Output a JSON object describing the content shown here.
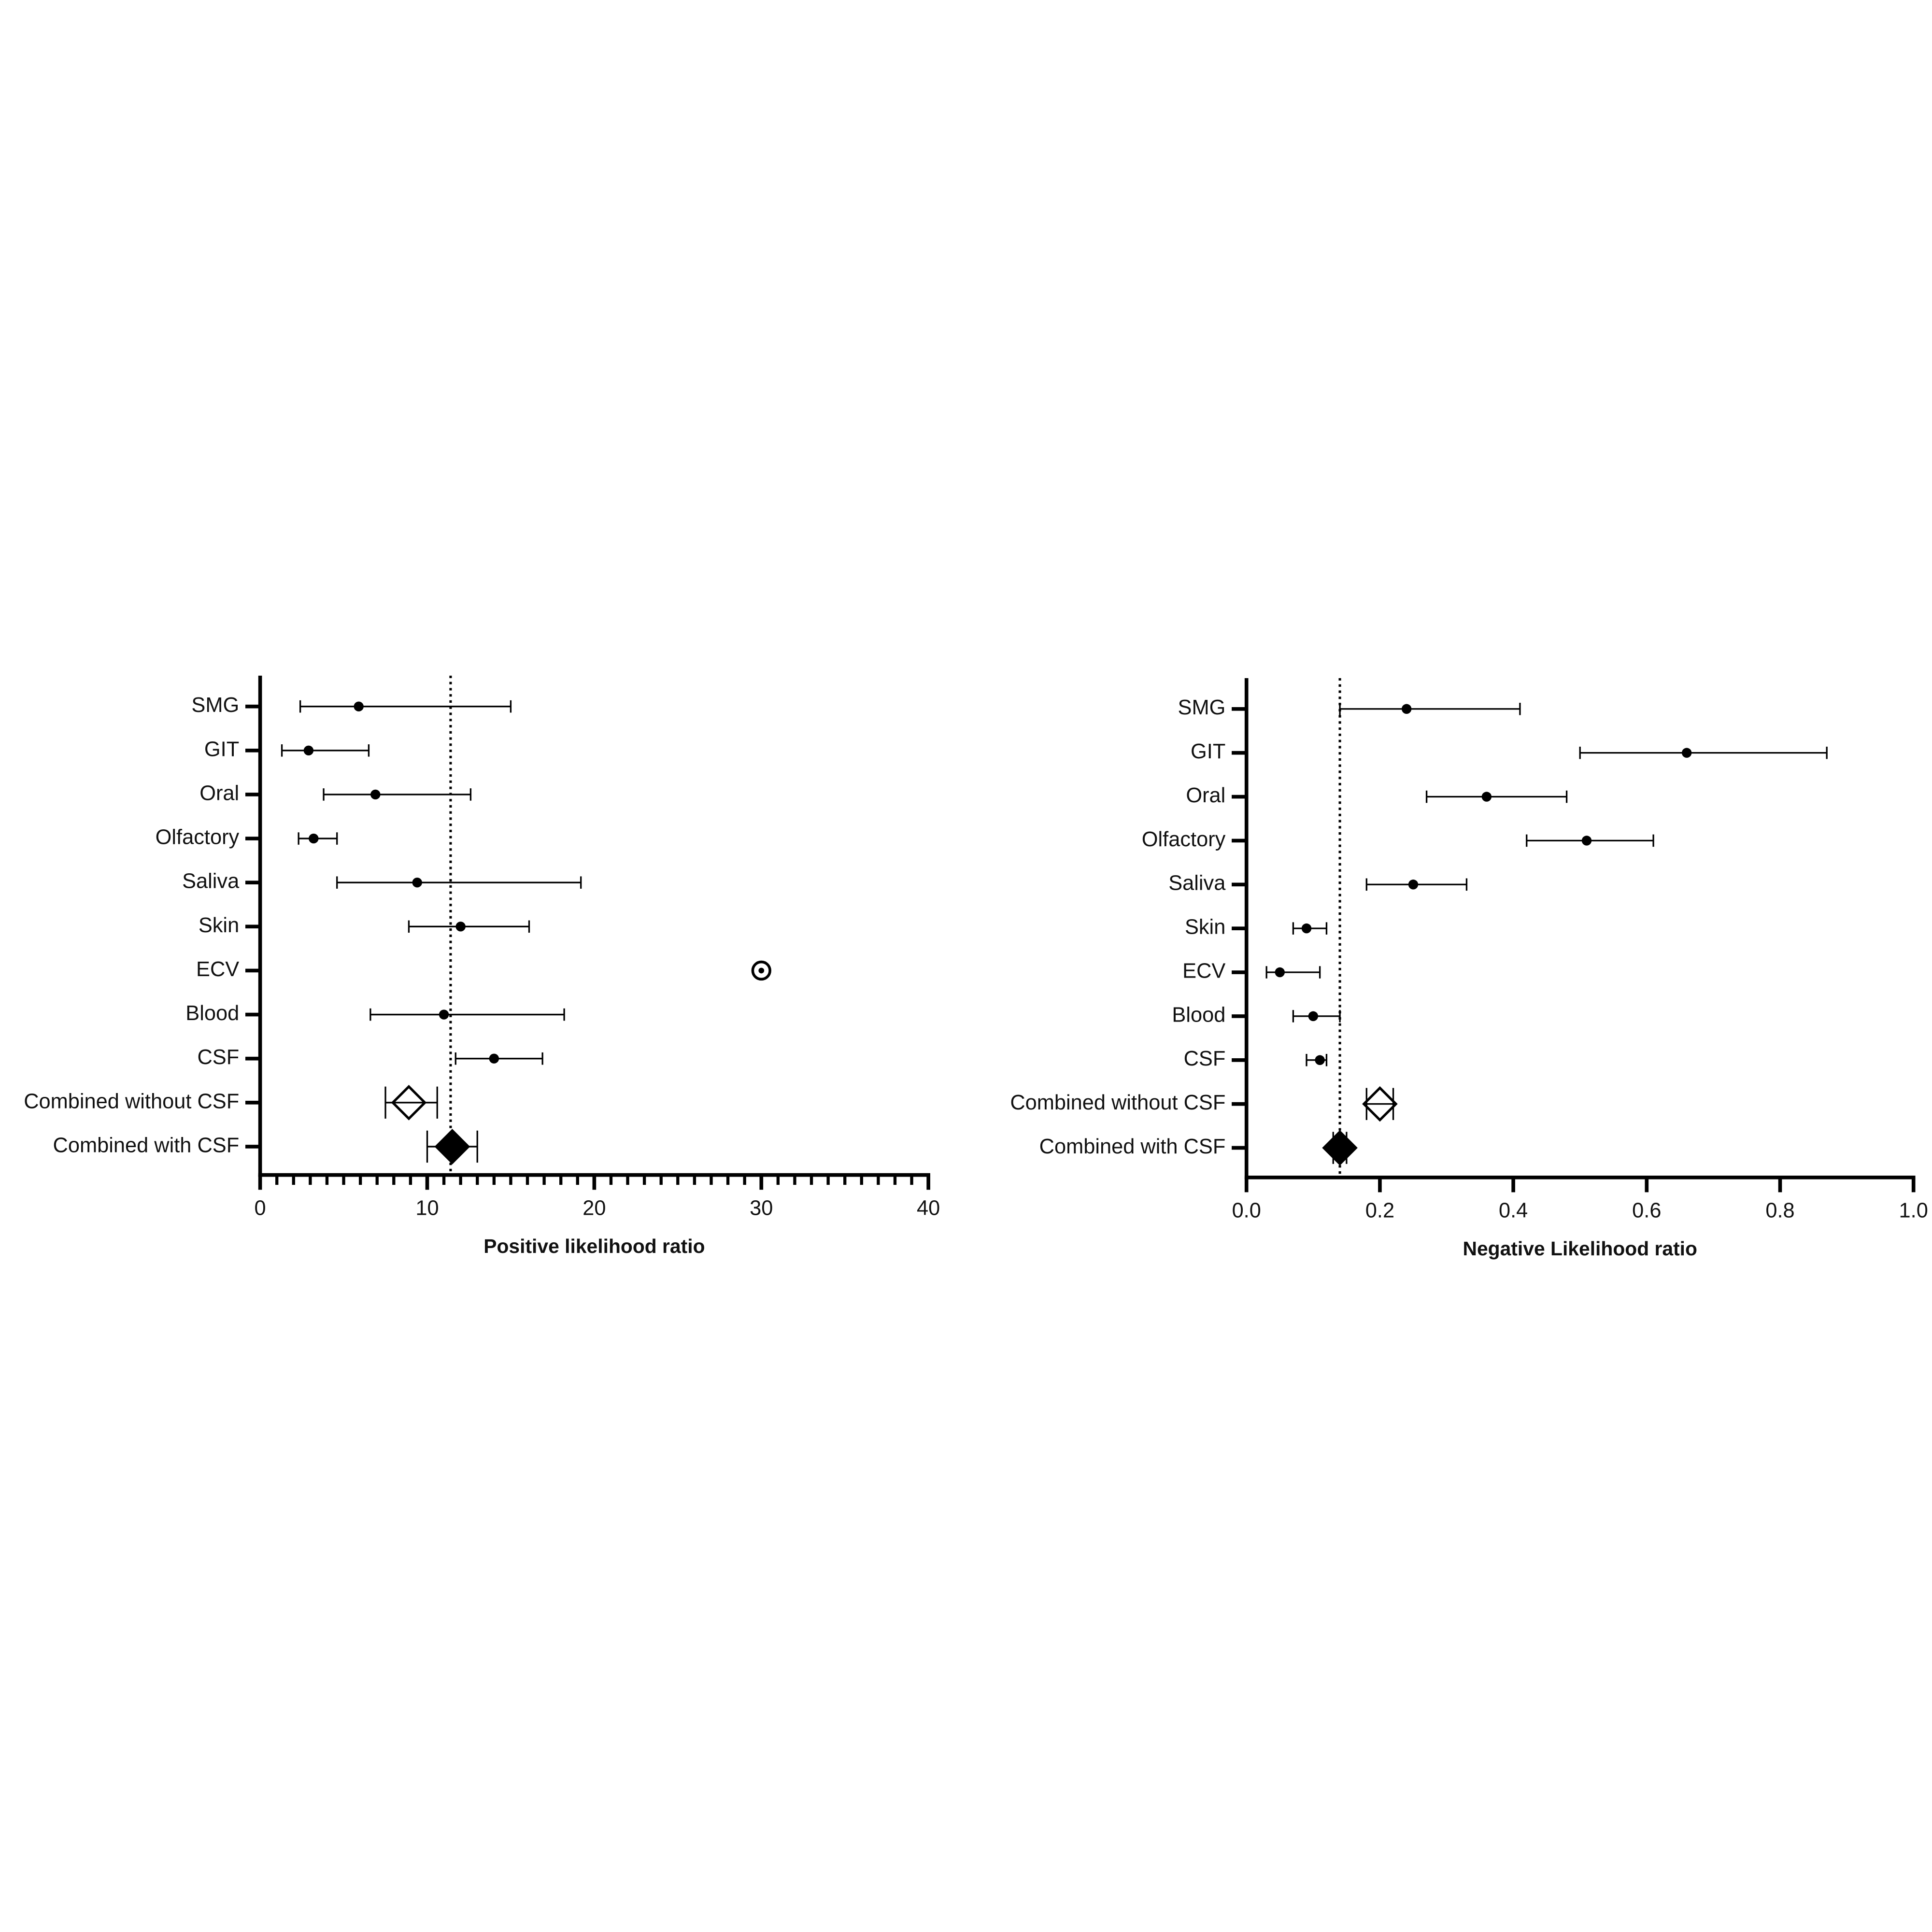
{
  "chart_data": [
    {
      "type": "forest",
      "xlabel": "Positive likelihood ratio",
      "categories": [
        "SMG",
        "GIT",
        "Oral",
        "Olfactory",
        "Saliva",
        "Skin",
        "ECV",
        "Blood",
        "CSF",
        "Combined without CSF",
        "Combined with CSF"
      ],
      "values": [
        5.9,
        2.9,
        6.9,
        3.2,
        9.4,
        12.0,
        30.0,
        11.0,
        14.0,
        8.9,
        11.5
      ],
      "lower": [
        2.4,
        1.3,
        3.8,
        2.3,
        4.6,
        8.9,
        null,
        6.6,
        11.7,
        7.5,
        10.0
      ],
      "upper": [
        15.0,
        6.5,
        12.6,
        4.6,
        19.2,
        16.1,
        null,
        18.2,
        16.9,
        10.6,
        13.0
      ],
      "markers": [
        "dot",
        "dot",
        "dot",
        "dot",
        "dot",
        "dot",
        "ringdot",
        "dot",
        "dot",
        "open-diamond",
        "filled-diamond"
      ],
      "reference_line": 11.4,
      "xlim": [
        0,
        40
      ],
      "xticks": [
        0,
        10,
        20,
        30,
        40
      ],
      "xminorticks": [
        1,
        2,
        3,
        4,
        5,
        6,
        7,
        8,
        9,
        11,
        12,
        13,
        14,
        15,
        16,
        17,
        18,
        19,
        21,
        22,
        23,
        24,
        25,
        26,
        27,
        28,
        29,
        31,
        32,
        33,
        34,
        35,
        36,
        37,
        38,
        39
      ],
      "color": "#000000"
    },
    {
      "type": "forest",
      "xlabel": "Negative Likelihood ratio",
      "categories": [
        "SMG",
        "GIT",
        "Oral",
        "Olfactory",
        "Saliva",
        "Skin",
        "ECV",
        "Blood",
        "CSF",
        "Combined without CSF",
        "Combined with CSF"
      ],
      "values": [
        0.24,
        0.66,
        0.36,
        0.51,
        0.25,
        0.09,
        0.05,
        0.1,
        0.11,
        0.2,
        0.14
      ],
      "lower": [
        0.14,
        0.5,
        0.27,
        0.42,
        0.18,
        0.07,
        0.03,
        0.07,
        0.09,
        0.18,
        0.13
      ],
      "upper": [
        0.41,
        0.87,
        0.48,
        0.61,
        0.33,
        0.12,
        0.11,
        0.14,
        0.12,
        0.22,
        0.15
      ],
      "markers": [
        "dot",
        "dot",
        "dot",
        "dot",
        "dot",
        "dot",
        "dot",
        "dot",
        "dot",
        "open-diamond",
        "filled-diamond"
      ],
      "reference_line": 0.14,
      "xlim": [
        0,
        1
      ],
      "xticks": [
        {
          "value": 0,
          "label": "0.0"
        },
        0.2,
        0.4,
        0.6,
        0.8,
        {
          "value": 1,
          "label": "1.0"
        }
      ],
      "color": "#000000"
    }
  ]
}
